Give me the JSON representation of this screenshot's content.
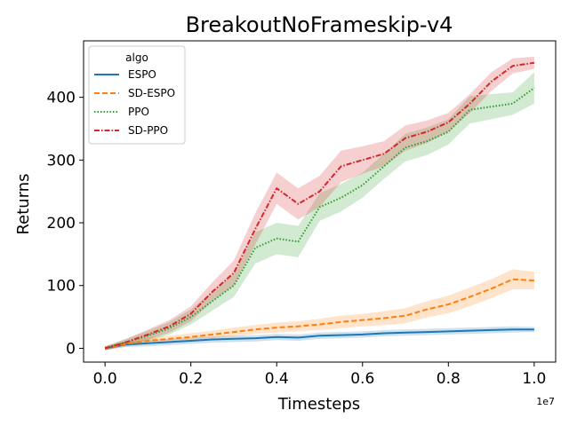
{
  "chart_data": {
    "type": "line",
    "title": "BreakoutNoFrameskip-v4",
    "xlabel": "Timesteps",
    "ylabel": "Returns",
    "x_offset_label": "1e7",
    "xlim": [
      -0.05,
      1.05
    ],
    "ylim": [
      -22,
      490
    ],
    "xticks": [
      0.0,
      0.2,
      0.4,
      0.6,
      0.8,
      1.0
    ],
    "xtick_labels": [
      "0.0",
      "0.2",
      "0.4",
      "0.6",
      "0.8",
      "1.0"
    ],
    "yticks": [
      0,
      100,
      200,
      300,
      400
    ],
    "ytick_labels": [
      "0",
      "100",
      "200",
      "300",
      "400"
    ],
    "grid": false,
    "legend": {
      "title": "algo",
      "placement": "upper left"
    },
    "series": [
      {
        "name": "ESPO",
        "color": "#1f77b4",
        "dash": "solid",
        "x": [
          0.0,
          0.05,
          0.1,
          0.15,
          0.2,
          0.25,
          0.3,
          0.35,
          0.4,
          0.45,
          0.5,
          0.55,
          0.6,
          0.65,
          0.7,
          0.75,
          0.8,
          0.85,
          0.9,
          0.95,
          1.0
        ],
        "y": [
          0,
          6,
          8,
          10,
          12,
          14,
          15,
          16,
          18,
          17,
          20,
          21,
          22,
          24,
          25,
          26,
          27,
          28,
          29,
          30,
          30
        ],
        "band": [
          3,
          4,
          5,
          5,
          5,
          5,
          5,
          5,
          5,
          5,
          5,
          5,
          5,
          5,
          5,
          5,
          5,
          5,
          5,
          5,
          4
        ]
      },
      {
        "name": "SD-ESPO",
        "color": "#ff7f0e",
        "dash": "dashed",
        "x": [
          0.0,
          0.05,
          0.1,
          0.15,
          0.2,
          0.25,
          0.3,
          0.35,
          0.4,
          0.45,
          0.5,
          0.55,
          0.6,
          0.65,
          0.7,
          0.75,
          0.8,
          0.85,
          0.9,
          0.95,
          1.0
        ],
        "y": [
          0,
          7,
          12,
          15,
          18,
          22,
          26,
          30,
          33,
          35,
          38,
          42,
          45,
          48,
          52,
          62,
          70,
          82,
          95,
          110,
          108
        ],
        "band": [
          3,
          4,
          5,
          5,
          6,
          6,
          7,
          7,
          8,
          8,
          9,
          10,
          10,
          11,
          12,
          13,
          14,
          15,
          15,
          16,
          14
        ]
      },
      {
        "name": "PPO",
        "color": "#2ca02c",
        "dash": "dotted",
        "x": [
          0.0,
          0.05,
          0.1,
          0.15,
          0.2,
          0.25,
          0.3,
          0.35,
          0.4,
          0.45,
          0.5,
          0.55,
          0.6,
          0.65,
          0.7,
          0.75,
          0.8,
          0.85,
          0.9,
          0.95,
          1.0
        ],
        "y": [
          0,
          10,
          20,
          32,
          50,
          75,
          100,
          160,
          175,
          170,
          225,
          240,
          260,
          290,
          320,
          330,
          345,
          380,
          385,
          390,
          415
        ],
        "band": [
          3,
          5,
          8,
          10,
          12,
          15,
          18,
          25,
          25,
          25,
          22,
          22,
          20,
          20,
          22,
          22,
          20,
          22,
          20,
          18,
          25
        ]
      },
      {
        "name": "SD-PPO",
        "color": "#d62728",
        "dash": "dashdot",
        "x": [
          0.0,
          0.05,
          0.1,
          0.15,
          0.2,
          0.25,
          0.3,
          0.35,
          0.4,
          0.45,
          0.5,
          0.55,
          0.6,
          0.65,
          0.7,
          0.75,
          0.8,
          0.85,
          0.9,
          0.95,
          1.0
        ],
        "y": [
          0,
          10,
          22,
          35,
          55,
          90,
          120,
          190,
          255,
          230,
          250,
          290,
          300,
          310,
          335,
          345,
          360,
          390,
          425,
          450,
          455
        ],
        "band": [
          3,
          5,
          8,
          10,
          12,
          15,
          20,
          25,
          25,
          25,
          25,
          25,
          22,
          20,
          20,
          18,
          15,
          15,
          15,
          12,
          10
        ]
      }
    ]
  }
}
